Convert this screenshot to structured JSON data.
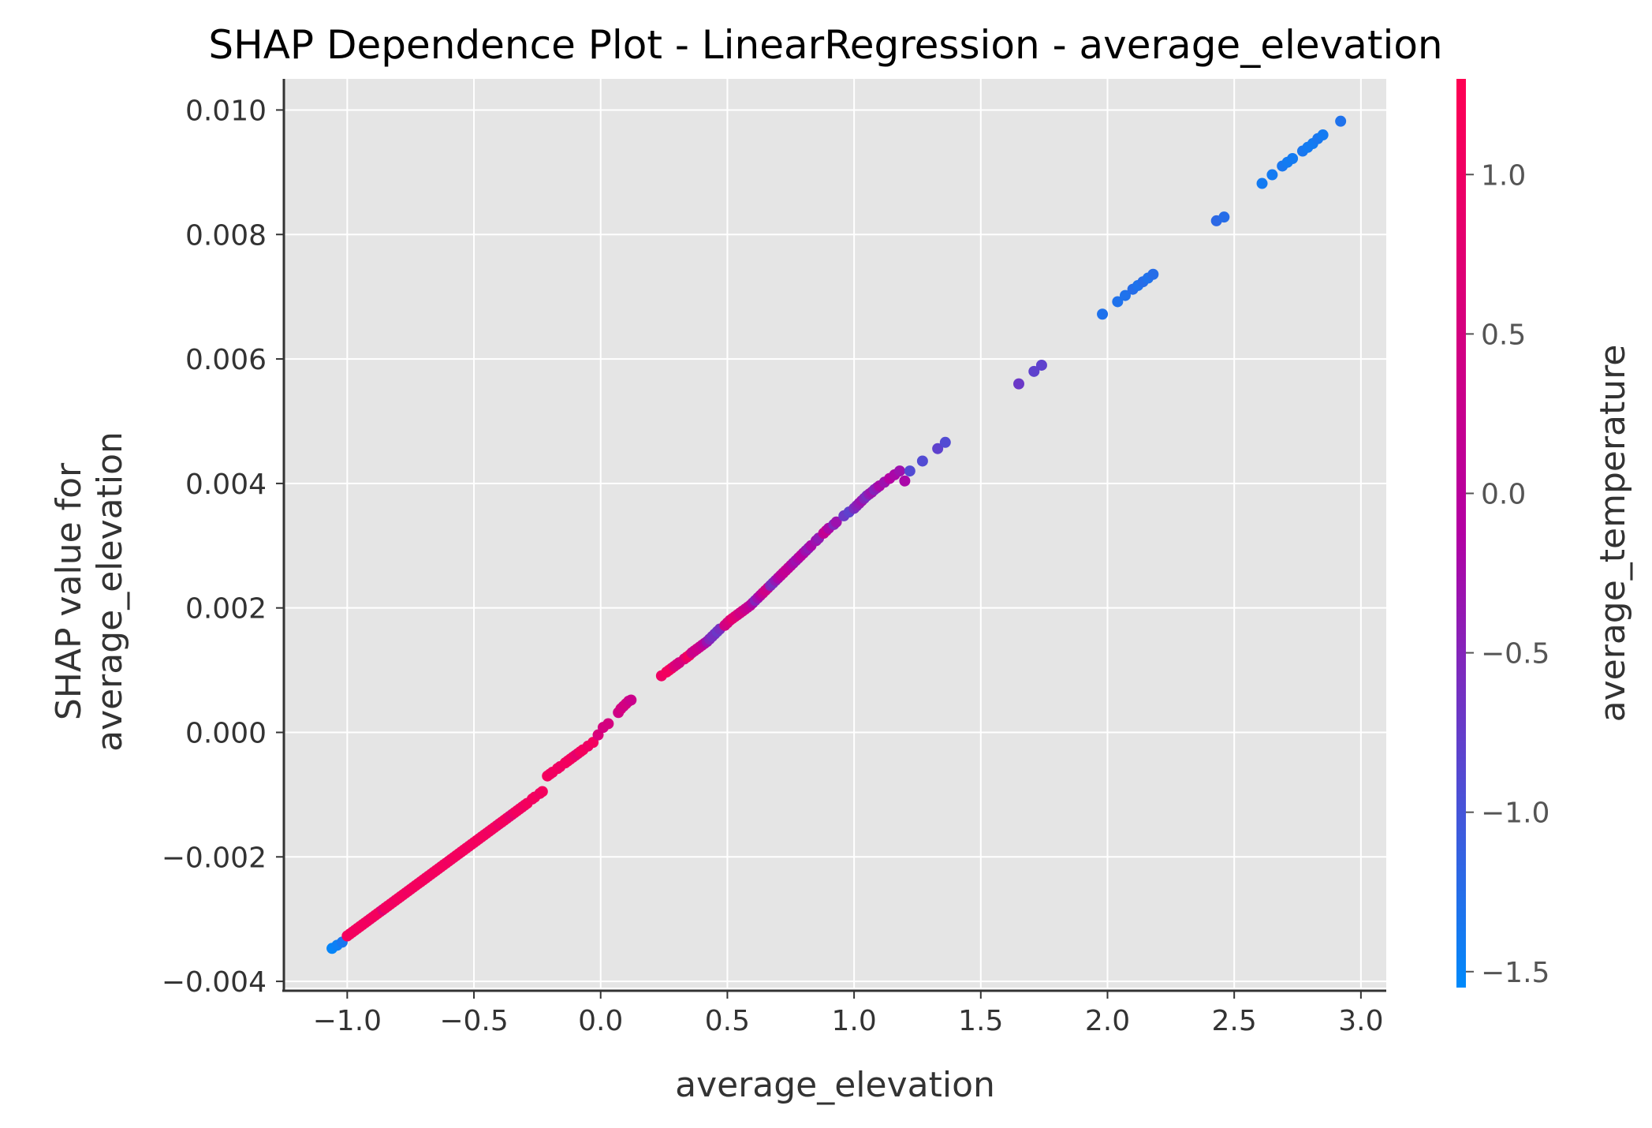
{
  "chart_data": {
    "type": "scatter",
    "title": "SHAP Dependence Plot - LinearRegression - average_elevation",
    "xlabel": "average_elevation",
    "ylabel_lines": [
      "SHAP value for",
      "average_elevation"
    ],
    "xlim": [
      -1.25,
      3.1
    ],
    "ylim": [
      -0.0041,
      0.0105
    ],
    "x_ticks": [
      -1.0,
      -0.5,
      0.0,
      0.5,
      1.0,
      1.5,
      2.0,
      2.5,
      3.0
    ],
    "x_tick_labels": [
      "−1.0",
      "−0.5",
      "0.0",
      "0.5",
      "1.0",
      "1.5",
      "2.0",
      "2.5",
      "3.0"
    ],
    "y_ticks": [
      -0.004,
      -0.002,
      0.0,
      0.002,
      0.004,
      0.006,
      0.008,
      0.01
    ],
    "y_tick_labels": [
      "−0.004",
      "−0.002",
      "0.000",
      "0.002",
      "0.004",
      "0.006",
      "0.008",
      "0.010"
    ],
    "grid": true,
    "background_color": "#e5e5e5",
    "colorbar": {
      "label": "average_temperature",
      "range": [
        -1.55,
        1.3
      ],
      "ticks": [
        -1.5,
        -1.0,
        -0.5,
        0.0,
        0.5,
        1.0
      ],
      "tick_labels": [
        "−1.5",
        "−1.0",
        "−0.5",
        "0.0",
        "0.5",
        "1.0"
      ],
      "color_low": "#008afb",
      "color_mid": "#b300a3",
      "color_high": "#ff0052"
    },
    "series": [
      {
        "points": [
          [
            -1.06,
            -0.00347,
            -1.5
          ],
          [
            -1.04,
            -0.00342,
            -1.45
          ],
          [
            -1.02,
            -0.00337,
            -1.35
          ],
          [
            -1.0,
            -0.00327,
            1.1
          ],
          [
            -0.99,
            -0.00324,
            1.15
          ],
          [
            -0.98,
            -0.00321,
            1.1
          ],
          [
            -0.97,
            -0.00318,
            1.1
          ],
          [
            -0.96,
            -0.00315,
            1.05
          ],
          [
            -0.95,
            -0.00312,
            1.1
          ],
          [
            -0.94,
            -0.00309,
            1.1
          ],
          [
            -0.93,
            -0.00306,
            1.05
          ],
          [
            -0.92,
            -0.00303,
            1.1
          ],
          [
            -0.91,
            -0.003,
            1.0
          ],
          [
            -0.9,
            -0.00297,
            1.1
          ],
          [
            -0.89,
            -0.00294,
            1.05
          ],
          [
            -0.88,
            -0.00291,
            1.1
          ],
          [
            -0.87,
            -0.00288,
            1.1
          ],
          [
            -0.86,
            -0.00285,
            0.7
          ],
          [
            -0.85,
            -0.00282,
            1.1
          ],
          [
            -0.84,
            -0.00279,
            1.05
          ],
          [
            -0.83,
            -0.00276,
            1.1
          ],
          [
            -0.82,
            -0.00273,
            1.1
          ],
          [
            -0.81,
            -0.0027,
            1.0
          ],
          [
            -0.8,
            -0.00267,
            1.1
          ],
          [
            -0.79,
            -0.00264,
            1.05
          ],
          [
            -0.78,
            -0.00261,
            1.1
          ],
          [
            -0.77,
            -0.00258,
            1.1
          ],
          [
            -0.76,
            -0.00255,
            1.0
          ],
          [
            -0.75,
            -0.00252,
            1.1
          ],
          [
            -0.74,
            -0.00249,
            1.05
          ],
          [
            -0.73,
            -0.00246,
            1.1
          ],
          [
            -0.72,
            -0.00243,
            1.1
          ],
          [
            -0.71,
            -0.0024,
            1.05
          ],
          [
            -0.7,
            -0.00237,
            1.1
          ],
          [
            -0.69,
            -0.00234,
            1.1
          ],
          [
            -0.68,
            -0.00231,
            1.0
          ],
          [
            -0.67,
            -0.00228,
            1.1
          ],
          [
            -0.66,
            -0.00225,
            1.05
          ],
          [
            -0.65,
            -0.00222,
            1.1
          ],
          [
            -0.64,
            -0.00219,
            1.1
          ],
          [
            -0.63,
            -0.00216,
            1.05
          ],
          [
            -0.62,
            -0.00213,
            1.1
          ],
          [
            -0.61,
            -0.0021,
            1.1
          ],
          [
            -0.6,
            -0.00207,
            1.0
          ],
          [
            -0.59,
            -0.00204,
            1.1
          ],
          [
            -0.58,
            -0.00201,
            1.05
          ],
          [
            -0.57,
            -0.00198,
            1.1
          ],
          [
            -0.56,
            -0.00195,
            1.1
          ],
          [
            -0.55,
            -0.00192,
            1.05
          ],
          [
            -0.54,
            -0.00189,
            1.1
          ],
          [
            -0.53,
            -0.00186,
            1.1
          ],
          [
            -0.52,
            -0.00183,
            1.0
          ],
          [
            -0.51,
            -0.0018,
            1.1
          ],
          [
            -0.5,
            -0.00177,
            1.05
          ],
          [
            -0.49,
            -0.00174,
            1.1
          ],
          [
            -0.48,
            -0.00171,
            1.1
          ],
          [
            -0.47,
            -0.00168,
            1.05
          ],
          [
            -0.46,
            -0.00165,
            1.1
          ],
          [
            -0.45,
            -0.00162,
            1.1
          ],
          [
            -0.44,
            -0.00159,
            1.0
          ],
          [
            -0.43,
            -0.00156,
            1.1
          ],
          [
            -0.42,
            -0.00153,
            1.05
          ],
          [
            -0.41,
            -0.0015,
            1.1
          ],
          [
            -0.4,
            -0.00147,
            0.9
          ],
          [
            -0.39,
            -0.00144,
            1.05
          ],
          [
            -0.38,
            -0.00141,
            1.1
          ],
          [
            -0.37,
            -0.00138,
            1.1
          ],
          [
            -0.36,
            -0.00135,
            0.9
          ],
          [
            -0.35,
            -0.00132,
            0.8
          ],
          [
            -0.34,
            -0.00129,
            1.0
          ],
          [
            -0.33,
            -0.00126,
            1.1
          ],
          [
            -0.32,
            -0.00123,
            1.05
          ],
          [
            -0.31,
            -0.0012,
            1.1
          ],
          [
            -0.3,
            -0.00117,
            1.0
          ],
          [
            -0.29,
            -0.00114,
            1.1
          ],
          [
            -0.27,
            -0.00107,
            1.05
          ],
          [
            -0.26,
            -0.00104,
            1.1
          ],
          [
            -0.24,
            -0.00098,
            1.0
          ],
          [
            -0.23,
            -0.00095,
            1.1
          ],
          [
            -0.21,
            -0.0007,
            1.1
          ],
          [
            -0.2,
            -0.00067,
            1.1
          ],
          [
            -0.19,
            -0.00064,
            1.05
          ],
          [
            -0.17,
            -0.00058,
            1.1
          ],
          [
            -0.16,
            -0.00055,
            1.0
          ],
          [
            -0.14,
            -0.00049,
            1.1
          ],
          [
            -0.13,
            -0.00046,
            1.05
          ],
          [
            -0.12,
            -0.00043,
            1.1
          ],
          [
            -0.11,
            -0.0004,
            1.1
          ],
          [
            -0.1,
            -0.00037,
            0.9
          ],
          [
            -0.09,
            -0.00034,
            0.8
          ],
          [
            -0.08,
            -0.00031,
            1.05
          ],
          [
            -0.07,
            -0.00028,
            1.1
          ],
          [
            -0.05,
            -0.00022,
            1.0
          ],
          [
            -0.03,
            -0.00016,
            1.1
          ],
          [
            -0.01,
            -4e-05,
            0.6
          ],
          [
            0.01,
            8e-05,
            0.5
          ],
          [
            0.03,
            0.00014,
            0.5
          ],
          [
            0.07,
            0.00032,
            0.4
          ],
          [
            0.08,
            0.00038,
            0.5
          ],
          [
            0.09,
            0.00042,
            0.4
          ],
          [
            0.1,
            0.00046,
            0.5
          ],
          [
            0.11,
            0.0005,
            0.4
          ],
          [
            0.12,
            0.00052,
            0.3
          ],
          [
            0.24,
            0.00091,
            1.0
          ],
          [
            0.26,
            0.00097,
            1.1
          ],
          [
            0.27,
            0.001,
            1.05
          ],
          [
            0.28,
            0.00103,
            1.1
          ],
          [
            0.29,
            0.00106,
            0.7
          ],
          [
            0.3,
            0.00109,
            0.6
          ],
          [
            0.31,
            0.00112,
            0.5
          ],
          [
            0.33,
            0.00118,
            0.6
          ],
          [
            0.34,
            0.00121,
            0.9
          ],
          [
            0.35,
            0.00124,
            1.1
          ],
          [
            0.36,
            0.00128,
            0.4
          ],
          [
            0.37,
            0.00131,
            0.3
          ],
          [
            0.38,
            0.00134,
            0.4
          ],
          [
            0.39,
            0.00137,
            0.3
          ],
          [
            0.4,
            0.0014,
            0.2
          ],
          [
            0.41,
            0.00143,
            0.0
          ],
          [
            0.42,
            0.00146,
            -0.3
          ],
          [
            0.43,
            0.0015,
            -0.5
          ],
          [
            0.44,
            0.00154,
            -0.6
          ],
          [
            0.45,
            0.00158,
            -0.6
          ],
          [
            0.46,
            0.00162,
            -0.7
          ],
          [
            0.47,
            0.00166,
            -0.6
          ],
          [
            0.49,
            0.00172,
            0.4
          ],
          [
            0.5,
            0.00176,
            0.5
          ],
          [
            0.51,
            0.0018,
            0.6
          ],
          [
            0.52,
            0.00183,
            0.8
          ],
          [
            0.53,
            0.00186,
            0.7
          ],
          [
            0.54,
            0.00189,
            0.6
          ],
          [
            0.55,
            0.00192,
            0.4
          ],
          [
            0.56,
            0.00195,
            0.5
          ],
          [
            0.57,
            0.00198,
            0.3
          ],
          [
            0.58,
            0.00201,
            0.2
          ],
          [
            0.59,
            0.00204,
            0.1
          ],
          [
            0.6,
            0.00208,
            -0.2
          ],
          [
            0.61,
            0.00212,
            -0.5
          ],
          [
            0.62,
            0.00216,
            -0.3
          ],
          [
            0.63,
            0.0022,
            -0.1
          ],
          [
            0.64,
            0.00224,
            0.2
          ],
          [
            0.65,
            0.00228,
            0.4
          ],
          [
            0.66,
            0.00232,
            0.3
          ],
          [
            0.67,
            0.00236,
            -0.5
          ],
          [
            0.68,
            0.0024,
            -0.6
          ],
          [
            0.69,
            0.00244,
            -0.4
          ],
          [
            0.7,
            0.00248,
            -0.2
          ],
          [
            0.71,
            0.00252,
            0.0
          ],
          [
            0.72,
            0.00256,
            0.1
          ],
          [
            0.73,
            0.0026,
            0.2
          ],
          [
            0.74,
            0.00264,
            0.1
          ],
          [
            0.75,
            0.00268,
            0.0
          ],
          [
            0.76,
            0.00272,
            -0.2
          ],
          [
            0.77,
            0.00276,
            -0.3
          ],
          [
            0.78,
            0.0028,
            -0.2
          ],
          [
            0.79,
            0.00284,
            0.0
          ],
          [
            0.8,
            0.00288,
            -0.1
          ],
          [
            0.81,
            0.00292,
            -0.3
          ],
          [
            0.82,
            0.00296,
            -0.4
          ],
          [
            0.83,
            0.003,
            -0.2
          ],
          [
            0.85,
            0.00308,
            -0.3
          ],
          [
            0.86,
            0.00312,
            -0.4
          ],
          [
            0.88,
            0.0032,
            0.1
          ],
          [
            0.89,
            0.00324,
            0.2
          ],
          [
            0.9,
            0.00328,
            -0.2
          ],
          [
            0.92,
            0.00334,
            -0.5
          ],
          [
            0.93,
            0.00338,
            -0.3
          ],
          [
            0.96,
            0.00348,
            -0.7
          ],
          [
            0.98,
            0.00354,
            -0.8
          ],
          [
            1.0,
            0.0036,
            -0.6
          ],
          [
            1.01,
            0.00364,
            -0.5
          ],
          [
            1.02,
            0.00368,
            -0.4
          ],
          [
            1.03,
            0.00372,
            -0.3
          ],
          [
            1.04,
            0.00376,
            -0.5
          ],
          [
            1.05,
            0.0038,
            -0.6
          ],
          [
            1.06,
            0.00383,
            -0.4
          ],
          [
            1.07,
            0.00386,
            -0.3
          ],
          [
            1.08,
            0.0039,
            -0.5
          ],
          [
            1.09,
            0.00393,
            -0.4
          ],
          [
            1.1,
            0.00396,
            -0.2
          ],
          [
            1.12,
            0.00402,
            -0.3
          ],
          [
            1.14,
            0.00408,
            -0.1
          ],
          [
            1.16,
            0.00414,
            -0.2
          ],
          [
            1.18,
            0.0042,
            -0.3
          ],
          [
            1.2,
            0.00404,
            -0.2
          ],
          [
            1.22,
            0.0042,
            -0.9
          ],
          [
            1.27,
            0.00436,
            -0.9
          ],
          [
            1.33,
            0.00456,
            -0.8
          ],
          [
            1.36,
            0.00466,
            -0.9
          ],
          [
            1.65,
            0.0056,
            -0.7
          ],
          [
            1.71,
            0.0058,
            -0.8
          ],
          [
            1.74,
            0.0059,
            -0.8
          ],
          [
            1.98,
            0.00672,
            -1.3
          ],
          [
            2.04,
            0.00692,
            -1.3
          ],
          [
            2.07,
            0.00702,
            -1.3
          ],
          [
            2.1,
            0.00712,
            -1.25
          ],
          [
            2.12,
            0.00718,
            -1.3
          ],
          [
            2.14,
            0.00724,
            -1.25
          ],
          [
            2.16,
            0.0073,
            -1.3
          ],
          [
            2.18,
            0.00736,
            -1.25
          ],
          [
            2.43,
            0.00822,
            -1.2
          ],
          [
            2.46,
            0.00828,
            -1.25
          ],
          [
            2.61,
            0.00882,
            -1.4
          ],
          [
            2.65,
            0.00896,
            -1.4
          ],
          [
            2.69,
            0.0091,
            -1.35
          ],
          [
            2.71,
            0.00916,
            -1.4
          ],
          [
            2.73,
            0.00922,
            -1.4
          ],
          [
            2.77,
            0.00934,
            -1.35
          ],
          [
            2.79,
            0.0094,
            -1.4
          ],
          [
            2.81,
            0.00946,
            -1.4
          ],
          [
            2.83,
            0.00954,
            -1.35
          ],
          [
            2.85,
            0.0096,
            -1.4
          ],
          [
            2.92,
            0.00982,
            -1.3
          ]
        ]
      }
    ]
  }
}
